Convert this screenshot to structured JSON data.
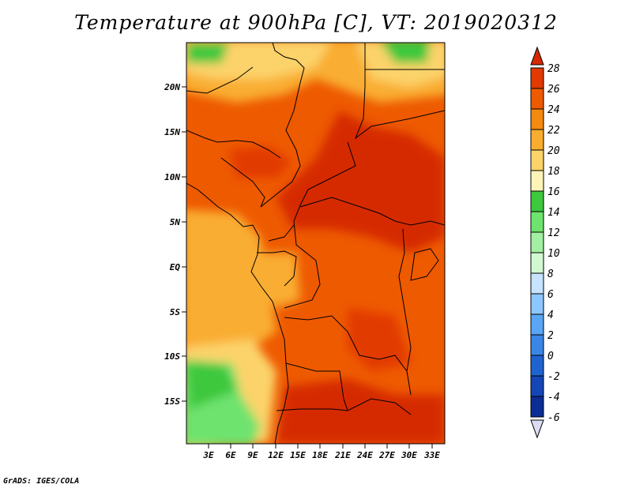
{
  "title": "Temperature at 900hPa [C], VT: 2019020312",
  "credit": "GrADS: IGES/COLA",
  "map": {
    "lat_labels": [
      "20N",
      "15N",
      "10N",
      "5N",
      "EQ",
      "5S",
      "10S",
      "15S"
    ],
    "lon_labels": [
      "3E",
      "6E",
      "9E",
      "12E",
      "15E",
      "18E",
      "21E",
      "24E",
      "27E",
      "30E",
      "33E"
    ]
  },
  "colorbar": {
    "labels": [
      "28",
      "26",
      "24",
      "22",
      "20",
      "18",
      "16",
      "14",
      "12",
      "10",
      "8",
      "6",
      "4",
      "2",
      "0",
      "-2",
      "-4",
      "-6"
    ],
    "colors": [
      "#d52a00",
      "#e23a00",
      "#ee5a00",
      "#f58a10",
      "#f9ad30",
      "#fcd36a",
      "#fff4b8",
      "#3ec83e",
      "#6ee36e",
      "#a2f0a2",
      "#d2f8d2",
      "#c6e4ff",
      "#8cc8ff",
      "#5aa6f5",
      "#3a86e6",
      "#2063d0",
      "#1446b6",
      "#0c2c96",
      "#070a5e"
    ],
    "over_color": "#d52a00",
    "under_color": "#dcdcf4"
  }
}
